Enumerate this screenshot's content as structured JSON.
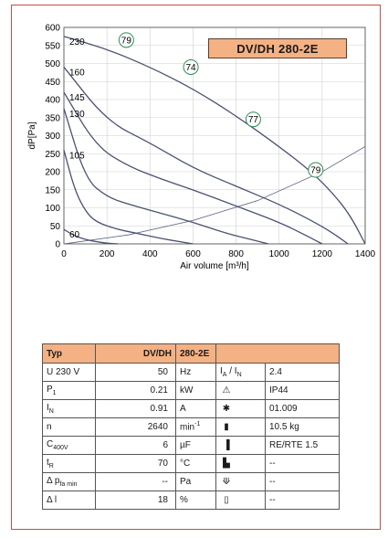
{
  "model": "DV/DH 280-2E",
  "chart_data": {
    "type": "line",
    "xlabel": "Air volume [m³/h]",
    "ylabel": "dP[Pa]",
    "xlim": [
      0,
      1400
    ],
    "ylim": [
      0,
      600
    ],
    "xticks": [
      0,
      200,
      400,
      600,
      800,
      1000,
      1200,
      1400
    ],
    "yticks": [
      0,
      50,
      100,
      150,
      200,
      250,
      300,
      350,
      400,
      450,
      500,
      550,
      600
    ],
    "grid": true,
    "series": [
      {
        "name": "230",
        "x": [
          0,
          200,
          400,
          600,
          800,
          1000,
          1150,
          1250,
          1330,
          1400
        ],
        "y": [
          575,
          540,
          490,
          430,
          355,
          270,
          200,
          140,
          80,
          0
        ]
      },
      {
        "name": "160",
        "x": [
          0,
          200,
          400,
          600,
          800,
          1000,
          1150,
          1250,
          1320
        ],
        "y": [
          490,
          340,
          280,
          210,
          160,
          110,
          65,
          30,
          0
        ]
      },
      {
        "name": "145",
        "x": [
          0,
          150,
          300,
          450,
          600,
          800,
          1000,
          1120,
          1200
        ],
        "y": [
          420,
          270,
          215,
          180,
          150,
          105,
          60,
          25,
          0
        ]
      },
      {
        "name": "130",
        "x": [
          0,
          100,
          200,
          300,
          450,
          600,
          750,
          850,
          950
        ],
        "y": [
          375,
          180,
          130,
          110,
          85,
          60,
          30,
          15,
          0
        ]
      },
      {
        "name": "105",
        "x": [
          0,
          50,
          100,
          150,
          250,
          350,
          450,
          550,
          600
        ],
        "y": [
          260,
          150,
          90,
          60,
          40,
          28,
          15,
          5,
          0
        ]
      },
      {
        "name": "60",
        "x": [
          0,
          50,
          100,
          150,
          200,
          250
        ],
        "y": [
          40,
          22,
          12,
          6,
          2,
          0
        ]
      }
    ],
    "efficiency_labels": [
      {
        "text": "79",
        "x": 290,
        "y": 565
      },
      {
        "text": "74",
        "x": 590,
        "y": 490
      },
      {
        "text": "77",
        "x": 880,
        "y": 345
      },
      {
        "text": "79",
        "x": 1170,
        "y": 205
      }
    ],
    "system_curves": [
      {
        "x": [
          0,
          300,
          600,
          900,
          1200,
          1400
        ],
        "y": [
          0,
          25,
          65,
          120,
          200,
          270
        ]
      }
    ]
  },
  "table": {
    "header": {
      "left": "Typ",
      "model": "DV/DH",
      "model2": "280-2E"
    },
    "rows": [
      {
        "label": "U",
        "label2": "230",
        "label3": "V",
        "value": "50",
        "unit": "Hz",
        "icon": "current-ratio",
        "right_label": "I<sub>A</sub> / I<sub>N</sub>",
        "right_value": "2.4"
      },
      {
        "label": "P",
        "sub": "1",
        "value": "0.21",
        "unit": "kW",
        "icon": "warning-triangle",
        "right_value": "IP44"
      },
      {
        "label": "I",
        "sub": "N",
        "value": "0.91",
        "unit": "A",
        "icon": "star-box",
        "right_value": "01.009"
      },
      {
        "label": "n",
        "value": "2640",
        "unit": "min",
        "unit_sup": "-1",
        "icon": "weight",
        "right_value": "10.5 kg"
      },
      {
        "label": "C",
        "sub": "400V",
        "value": "6",
        "unit": "µF",
        "icon": "controller",
        "right_value": "RE/RTE 1.5"
      },
      {
        "label": "t",
        "sub": "R",
        "value": "70",
        "unit": "°C",
        "icon": "thermal",
        "right_value": "--"
      },
      {
        "label": "Δ p",
        "sub": "fa min",
        "value": "--",
        "unit": "Pa",
        "icon": "pressure-switch",
        "right_value": "--"
      },
      {
        "label": "Δ l",
        "value": "18",
        "unit": "%",
        "icon": "doc",
        "right_value": "--"
      }
    ]
  }
}
